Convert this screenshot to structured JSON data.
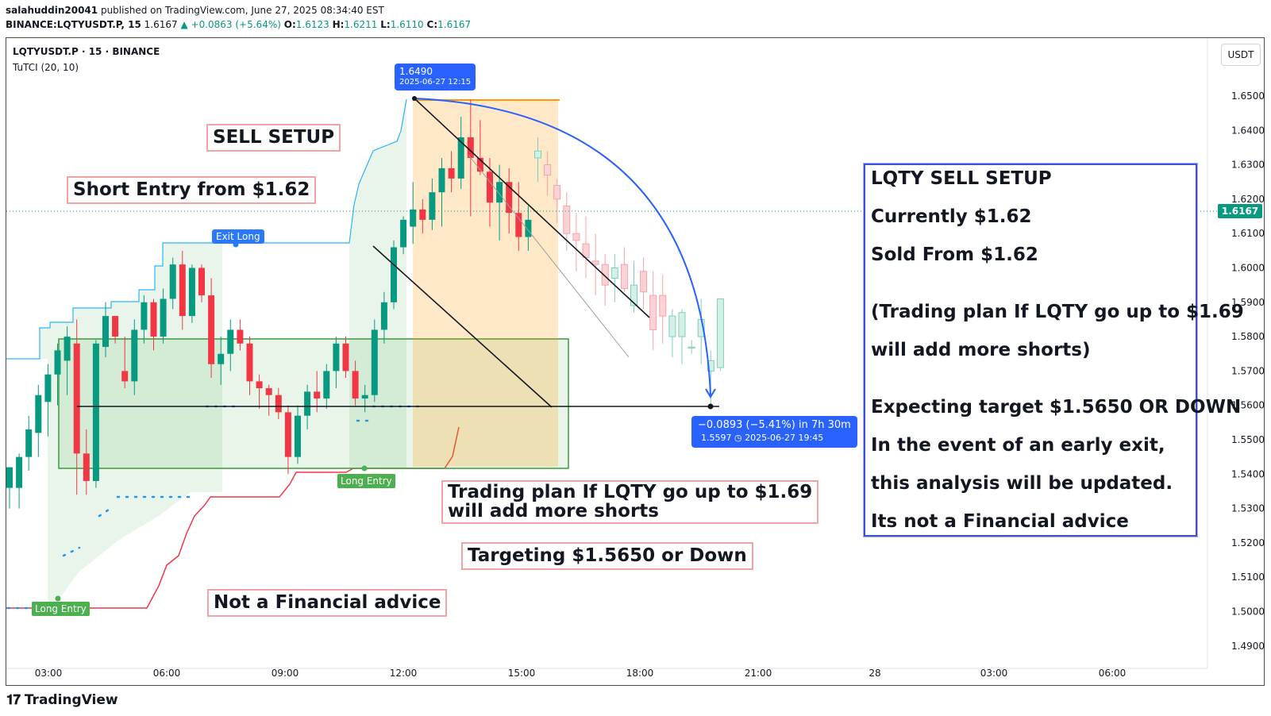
{
  "header": {
    "author": "salahuddin20041",
    "published": "published on TradingView.com, June 27, 2025 08:34:40 EST",
    "ticker": "BINANCE:LQTYUSDT.P, 15",
    "last": "1.6167",
    "change": "▲ +0.0863 (+5.64%)",
    "o_label": "O:",
    "o": "1.6123",
    "h_label": "H:",
    "h": "1.6211",
    "l_label": "L:",
    "l": "1.6110",
    "c_label": "C:",
    "c": "1.6167"
  },
  "legend": {
    "symbol": "LQTYUSDT.P · 15 · BINANCE",
    "indicator": "TuTCI (20, 10)"
  },
  "currency_button": "USDT",
  "current_price_tag": "1.6167",
  "notes": {
    "sell_setup": "SELL SETUP",
    "short_entry": "Short Entry from $1.62",
    "trading_plan_line1": "Trading plan If LQTY go up to $1.69",
    "trading_plan_line2": "will add more shorts",
    "targeting": "Targeting $1.5650 or Down",
    "not_advice": "Not a Financial advice"
  },
  "summary_box": {
    "l1": "LQTY SELL SETUP",
    "l2": "Currently $1.62",
    "l3": "Sold From $1.62",
    "l4": "(Trading plan If LQTY go up to $1.69",
    "l5": "will add more shorts)",
    "l6": "Expecting target $1.5650 OR DOWN",
    "l7": "In the event of an early exit,",
    "l8": "this analysis will be updated.",
    "l9": "Its not a Financial advice"
  },
  "signals": {
    "exit_long": "Exit Long",
    "long_entry_1": "Long Entry",
    "long_entry_2": "Long Entry"
  },
  "tooltips": {
    "high_price": "1.6490",
    "high_time": "2025-06-27 12:15",
    "measure_main": "−0.0893 (−5.41%) in 7h 30m",
    "measure_sub": "1.5597 ◷ 2025-06-27  19:45"
  },
  "brand": "TradingView",
  "colors": {
    "up": "#089981",
    "down": "#f23645",
    "accent": "#2962ff",
    "note_border": "#f2a4a4",
    "box_border": "#3f51d6"
  },
  "chart_data": {
    "type": "candlestick",
    "ylim": [
      1.4855,
      1.6645
    ],
    "y_ticks": [
      "1.6500",
      "1.6400",
      "1.6300",
      "1.6200",
      "1.6100",
      "1.6000",
      "1.5900",
      "1.5800",
      "1.5700",
      "1.5600",
      "1.5500",
      "1.5400",
      "1.5300",
      "1.5200",
      "1.5100",
      "1.5000",
      "1.4900"
    ],
    "x_ticks": [
      "03:00",
      "06:00",
      "09:00",
      "12:00",
      "15:00",
      "18:00",
      "21:00",
      "28",
      "03:00",
      "06:00"
    ],
    "candles": [
      [
        1.536,
        1.542,
        1.53,
        1.542
      ],
      [
        1.536,
        1.546,
        1.53,
        1.545
      ],
      [
        1.545,
        1.557,
        1.541,
        1.553
      ],
      [
        1.552,
        1.566,
        1.545,
        1.563
      ],
      [
        1.561,
        1.572,
        1.551,
        1.569
      ],
      [
        1.569,
        1.578,
        1.56,
        1.576
      ],
      [
        1.573,
        1.583,
        1.563,
        1.58
      ],
      [
        1.578,
        1.585,
        1.534,
        1.546
      ],
      [
        1.546,
        1.553,
        1.534,
        1.538
      ],
      [
        1.538,
        1.579,
        1.536,
        1.578
      ],
      [
        1.577,
        1.59,
        1.574,
        1.586
      ],
      [
        1.586,
        1.586,
        1.578,
        1.58
      ],
      [
        1.57,
        1.58,
        1.565,
        1.567
      ],
      [
        1.567,
        1.585,
        1.563,
        1.582
      ],
      [
        1.582,
        1.592,
        1.578,
        1.59
      ],
      [
        1.59,
        1.591,
        1.576,
        1.58
      ],
      [
        1.58,
        1.594,
        1.578,
        1.591
      ],
      [
        1.591,
        1.603,
        1.588,
        1.601
      ],
      [
        1.601,
        1.605,
        1.582,
        1.586
      ],
      [
        1.586,
        1.601,
        1.584,
        1.6
      ],
      [
        1.6,
        1.601,
        1.59,
        1.592
      ],
      [
        1.592,
        1.597,
        1.568,
        1.572
      ],
      [
        1.572,
        1.58,
        1.566,
        1.575
      ],
      [
        1.575,
        1.585,
        1.57,
        1.582
      ],
      [
        1.582,
        1.585,
        1.576,
        1.578
      ],
      [
        1.578,
        1.58,
        1.563,
        1.567
      ],
      [
        1.567,
        1.569,
        1.559,
        1.565
      ],
      [
        1.565,
        1.566,
        1.557,
        1.563
      ],
      [
        1.563,
        1.565,
        1.556,
        1.558
      ],
      [
        1.558,
        1.56,
        1.54,
        1.545
      ],
      [
        1.545,
        1.56,
        1.543,
        1.557
      ],
      [
        1.557,
        1.566,
        1.553,
        1.564
      ],
      [
        1.564,
        1.57,
        1.558,
        1.562
      ],
      [
        1.562,
        1.572,
        1.559,
        1.57
      ],
      [
        1.57,
        1.58,
        1.565,
        1.578
      ],
      [
        1.578,
        1.58,
        1.568,
        1.57
      ],
      [
        1.57,
        1.573,
        1.56,
        1.562
      ],
      [
        1.562,
        1.566,
        1.558,
        1.563
      ],
      [
        1.563,
        1.585,
        1.561,
        1.582
      ],
      [
        1.582,
        1.593,
        1.578,
        1.59
      ],
      [
        1.59,
        1.608,
        1.588,
        1.606
      ],
      [
        1.606,
        1.615,
        1.604,
        1.614
      ],
      [
        1.612,
        1.625,
        1.607,
        1.617
      ],
      [
        1.617,
        1.62,
        1.61,
        1.614
      ],
      [
        1.614,
        1.626,
        1.611,
        1.622
      ],
      [
        1.622,
        1.632,
        1.612,
        1.629
      ],
      [
        1.629,
        1.634,
        1.622,
        1.626
      ],
      [
        1.626,
        1.644,
        1.623,
        1.638
      ],
      [
        1.638,
        1.649,
        1.615,
        1.632
      ],
      [
        1.632,
        1.643,
        1.627,
        1.628
      ],
      [
        1.628,
        1.632,
        1.612,
        1.619
      ],
      [
        1.619,
        1.63,
        1.608,
        1.625
      ],
      [
        1.625,
        1.629,
        1.61,
        1.616
      ],
      [
        1.616,
        1.625,
        1.605,
        1.609
      ],
      [
        1.609,
        1.618,
        1.605,
        1.614
      ],
      [
        1.632,
        1.638,
        1.625,
        1.634
      ],
      [
        1.63,
        1.634,
        1.621,
        1.627
      ],
      [
        1.624,
        1.626,
        1.613,
        1.62
      ],
      [
        1.618,
        1.622,
        1.605,
        1.61
      ],
      [
        1.61,
        1.616,
        1.599,
        1.608
      ],
      [
        1.607,
        1.615,
        1.597,
        1.603
      ],
      [
        1.602,
        1.61,
        1.592,
        1.601
      ],
      [
        1.601,
        1.604,
        1.589,
        1.595
      ],
      [
        1.597,
        1.604,
        1.59,
        1.6
      ],
      [
        1.601,
        1.606,
        1.593,
        1.594
      ],
      [
        1.589,
        1.602,
        1.587,
        1.595
      ],
      [
        1.599,
        1.603,
        1.588,
        1.593
      ],
      [
        1.592,
        1.599,
        1.576,
        1.582
      ],
      [
        1.592,
        1.598,
        1.578,
        1.586
      ],
      [
        1.58,
        1.588,
        1.574,
        1.586
      ],
      [
        1.58,
        1.588,
        1.572,
        1.587
      ],
      [
        1.577,
        1.579,
        1.575,
        1.577
      ],
      [
        1.58,
        1.591,
        1.572,
        1.585
      ],
      [
        1.57,
        1.576,
        1.56,
        1.573
      ],
      [
        1.571,
        1.591,
        1.57,
        1.591
      ]
    ]
  }
}
